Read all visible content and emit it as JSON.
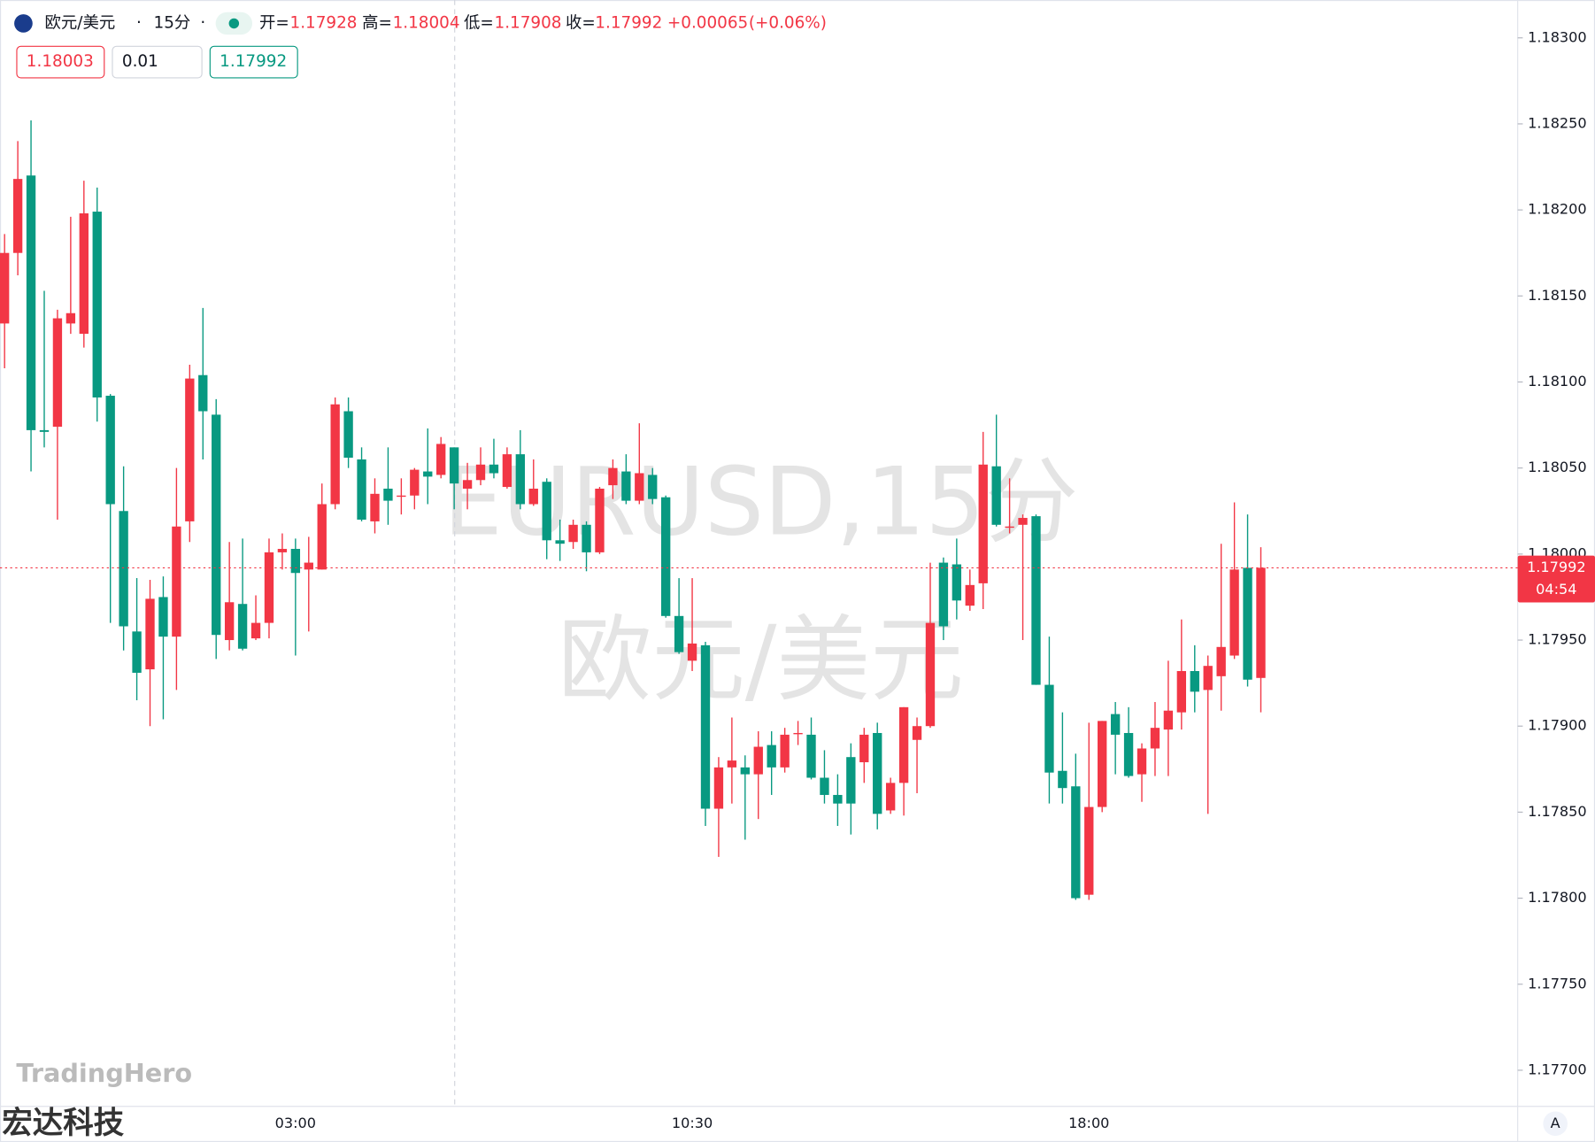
{
  "header": {
    "symbol": "欧元/美元",
    "interval": "15分",
    "open_label": "开=",
    "open": 1.17928,
    "high_label": "高=",
    "high": 1.18004,
    "low_label": "低=",
    "low": 1.17908,
    "close_label": "收=",
    "close": 1.17992,
    "change": {
      "value": 0.00065,
      "label": "+0.00065"
    },
    "change_pct": {
      "value": 0.06,
      "label": "(+0.06%)"
    }
  },
  "toolbar": {
    "sell": 1.18003,
    "quantity": 0.01,
    "buy": 1.17992
  },
  "watermark": {
    "line1": "EURUSD,15分",
    "line2": "欧元/美元"
  },
  "branding": {
    "logo": "TradingHero",
    "company": "宏达科技",
    "scale_button": "A"
  },
  "chart_data": {
    "type": "candlestick",
    "up_color": "#f23645",
    "down_color": "#089981",
    "categories": [
      null,
      null,
      null,
      null,
      null,
      null,
      null,
      null,
      null,
      null,
      null,
      null,
      null,
      null,
      null,
      null,
      null,
      null,
      null,
      null,
      null,
      null,
      "03:00",
      null,
      null,
      null,
      null,
      null,
      null,
      null,
      null,
      null,
      null,
      null,
      null,
      null,
      null,
      null,
      null,
      null,
      null,
      null,
      null,
      null,
      null,
      null,
      null,
      null,
      null,
      null,
      null,
      null,
      "10:30",
      null,
      null,
      null,
      null,
      null,
      null,
      null,
      null,
      null,
      null,
      null,
      null,
      null,
      null,
      null,
      null,
      null,
      null,
      null,
      null,
      null,
      null,
      null,
      null,
      null,
      null,
      null,
      null,
      null,
      "18:00",
      null,
      null,
      null,
      null,
      null,
      null,
      null,
      null,
      null,
      null,
      null,
      null,
      null
    ],
    "open": [
      1.18134,
      1.18175,
      1.1822,
      1.18072,
      1.18074,
      1.18134,
      1.18128,
      1.18199,
      1.18092,
      1.18025,
      1.17955,
      1.17933,
      1.17975,
      1.17952,
      1.18019,
      1.18104,
      1.18081,
      1.1795,
      1.17971,
      1.17951,
      1.1796,
      1.18001,
      1.18003,
      1.17991,
      1.17991,
      1.18029,
      1.18083,
      1.18055,
      1.18019,
      1.18038,
      1.18034,
      1.18034,
      1.18048,
      1.18046,
      1.18062,
      1.18038,
      1.18043,
      1.18052,
      1.18039,
      1.18058,
      1.18029,
      1.18042,
      1.18008,
      1.18007,
      1.18017,
      1.18001,
      1.1804,
      1.18048,
      1.18031,
      1.18046,
      1.18033,
      1.17964,
      1.17938,
      1.17947,
      1.17852,
      1.17876,
      1.17876,
      1.17872,
      1.17889,
      1.17876,
      1.17896,
      1.17895,
      1.1787,
      1.1786,
      1.17882,
      1.17879,
      1.17896,
      1.17851,
      1.17867,
      1.17892,
      1.179,
      1.17995,
      1.17994,
      1.1797,
      1.17983,
      1.18051,
      1.18016,
      1.18017,
      1.18022,
      1.17924,
      1.17874,
      1.17865,
      1.17802,
      1.17853,
      1.17907,
      1.17896,
      1.17872,
      1.17887,
      1.17898,
      1.17908,
      1.17932,
      1.17921,
      1.17929,
      1.17941,
      1.17992,
      1.17928
    ],
    "high": [
      1.18186,
      1.1824,
      1.18252,
      1.18153,
      1.18142,
      1.18196,
      1.18217,
      1.18213,
      1.18093,
      1.18051,
      1.17986,
      1.17985,
      1.17987,
      1.1805,
      1.1811,
      1.18143,
      1.1809,
      1.18007,
      1.18009,
      1.17976,
      1.18009,
      1.18012,
      1.18009,
      1.1801,
      1.18041,
      1.18091,
      1.18091,
      1.18062,
      1.18044,
      1.18062,
      1.18044,
      1.1805,
      1.18073,
      1.18068,
      1.18062,
      1.18053,
      1.18062,
      1.18067,
      1.18062,
      1.18072,
      1.18055,
      1.18044,
      1.1802,
      1.1802,
      1.18019,
      1.18039,
      1.18055,
      1.18058,
      1.18076,
      1.1805,
      1.18034,
      1.17986,
      1.17986,
      1.17949,
      1.17882,
      1.17905,
      1.17883,
      1.17897,
      1.17897,
      1.17899,
      1.17903,
      1.17905,
      1.17886,
      1.17872,
      1.1789,
      1.17899,
      1.17902,
      1.1787,
      1.17911,
      1.17905,
      1.17995,
      1.17998,
      1.18009,
      1.17991,
      1.18071,
      1.18081,
      1.18044,
      1.18023,
      1.18023,
      1.17952,
      1.17908,
      1.17884,
      1.17902,
      1.17903,
      1.17914,
      1.17911,
      1.1789,
      1.17914,
      1.17938,
      1.17962,
      1.17947,
      1.17941,
      1.18006,
      1.1803,
      1.18023,
      1.18004
    ],
    "low": [
      1.18108,
      1.18162,
      1.18048,
      1.18062,
      1.1802,
      1.18128,
      1.1812,
      1.18077,
      1.1796,
      1.17944,
      1.17915,
      1.179,
      1.17904,
      1.17921,
      1.18007,
      1.18055,
      1.17939,
      1.17944,
      1.17944,
      1.1795,
      1.17951,
      1.17991,
      1.17941,
      1.17955,
      1.17991,
      1.18026,
      1.1805,
      1.18019,
      1.18012,
      1.18017,
      1.18023,
      1.18026,
      1.18029,
      1.18044,
      1.18026,
      1.18026,
      1.1804,
      1.18044,
      1.18038,
      1.18026,
      1.18028,
      1.17997,
      1.17996,
      1.18003,
      1.1799,
      1.18,
      1.18032,
      1.18029,
      1.18029,
      1.18029,
      1.17963,
      1.17942,
      1.17932,
      1.17842,
      1.17824,
      1.17855,
      1.17834,
      1.17846,
      1.1786,
      1.17873,
      1.17889,
      1.17869,
      1.17855,
      1.17842,
      1.17837,
      1.17867,
      1.1784,
      1.17849,
      1.17848,
      1.17861,
      1.17899,
      1.1795,
      1.17962,
      1.17967,
      1.17968,
      1.18016,
      1.18012,
      1.1795,
      1.17924,
      1.17855,
      1.17855,
      1.17799,
      1.17799,
      1.1785,
      1.17872,
      1.1787,
      1.17856,
      1.17871,
      1.17871,
      1.17898,
      1.17908,
      1.17849,
      1.17909,
      1.17939,
      1.17923,
      1.17908
    ],
    "close": [
      1.18175,
      1.18218,
      1.18072,
      1.18071,
      1.18137,
      1.1814,
      1.18198,
      1.18091,
      1.18029,
      1.17958,
      1.17931,
      1.17974,
      1.17952,
      1.18016,
      1.18102,
      1.18083,
      1.17953,
      1.17972,
      1.17945,
      1.1796,
      1.18001,
      1.18003,
      1.17989,
      1.17995,
      1.18029,
      1.18087,
      1.18056,
      1.1802,
      1.18035,
      1.18031,
      1.18034,
      1.18049,
      1.18045,
      1.18064,
      1.18041,
      1.18043,
      1.18052,
      1.18047,
      1.18058,
      1.18029,
      1.18038,
      1.18008,
      1.18006,
      1.18017,
      1.18001,
      1.18038,
      1.1805,
      1.18031,
      1.18047,
      1.18032,
      1.17964,
      1.17943,
      1.17948,
      1.17852,
      1.17876,
      1.1788,
      1.17872,
      1.17888,
      1.17876,
      1.17895,
      1.17896,
      1.1787,
      1.1786,
      1.17855,
      1.17855,
      1.17895,
      1.17849,
      1.17867,
      1.17911,
      1.179,
      1.1796,
      1.17958,
      1.17973,
      1.17982,
      1.18052,
      1.18017,
      1.18016,
      1.18021,
      1.17924,
      1.17873,
      1.17864,
      1.178,
      1.17853,
      1.17903,
      1.17895,
      1.17871,
      1.17887,
      1.17899,
      1.17909,
      1.17932,
      1.1792,
      1.17935,
      1.17946,
      1.17991,
      1.17927,
      1.17992
    ],
    "ylim": [
      1.17679,
      1.18322
    ],
    "yticks": [
      {
        "value": 1.177,
        "label": "1.17700"
      },
      {
        "value": 1.1775,
        "label": "1.17750"
      },
      {
        "value": 1.178,
        "label": "1.17800"
      },
      {
        "value": 1.1785,
        "label": "1.17850"
      },
      {
        "value": 1.179,
        "label": "1.17900"
      },
      {
        "value": 1.1795,
        "label": "1.17950"
      },
      {
        "value": 1.18,
        "label": "1.18000"
      },
      {
        "value": 1.1805,
        "label": "1.18050"
      },
      {
        "value": 1.181,
        "label": "1.18100"
      },
      {
        "value": 1.1815,
        "label": "1.18150"
      },
      {
        "value": 1.182,
        "label": "1.18200"
      },
      {
        "value": 1.1825,
        "label": "1.18250"
      },
      {
        "value": 1.183,
        "label": "1.18300"
      }
    ],
    "countdown": "04:54",
    "grid": false
  }
}
